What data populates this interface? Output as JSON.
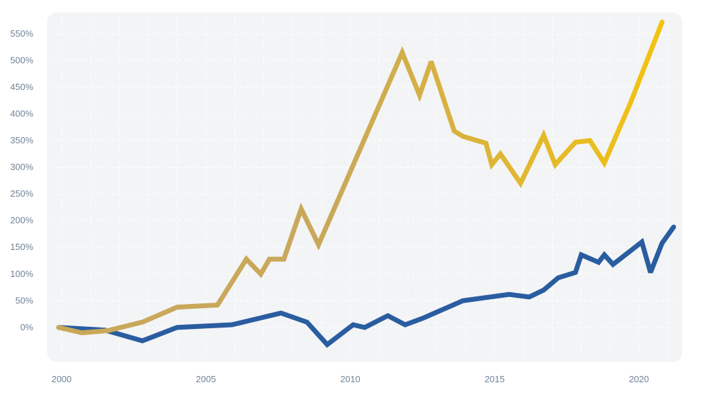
{
  "chart_data": {
    "type": "line",
    "title": "",
    "xlabel": "",
    "ylabel": "",
    "xlim": [
      1999.5,
      2021.5
    ],
    "ylim": [
      -65,
      590
    ],
    "x_ticks": [
      2000,
      2005,
      2010,
      2015,
      2020
    ],
    "x_tick_labels": [
      "2000",
      "2005",
      "2010",
      "2015",
      "2020"
    ],
    "y_ticks": [
      0,
      50,
      100,
      150,
      200,
      250,
      300,
      350,
      400,
      450,
      500,
      550
    ],
    "y_tick_labels": [
      "0%",
      "50%",
      "100%",
      "150%",
      "200%",
      "250%",
      "300%",
      "350%",
      "400%",
      "450%",
      "500%",
      "550%"
    ],
    "grid": true,
    "legend": "none",
    "colors": {
      "plot_background": "#f3f4f6",
      "grid": "#ffffff",
      "tick_text": "#6f8296",
      "gold_start": "#c9a85a",
      "gold_end": "#f2c311",
      "blue": "#2a5da0"
    },
    "series": [
      {
        "color": "gold-gradient",
        "x": [
          1999.9,
          2000.7,
          2001.6,
          2002.8,
          2004.0,
          2005.4,
          2006.4,
          2006.9,
          2007.2,
          2007.7,
          2008.3,
          2008.9,
          2011.8,
          2012.4,
          2012.8,
          2013.6,
          2013.9,
          2014.7,
          2014.9,
          2015.2,
          2015.9,
          2016.7,
          2017.1,
          2017.8,
          2018.3,
          2018.8,
          2019.7,
          2020.8
        ],
        "y": [
          0,
          -10,
          -6,
          10,
          38,
          42,
          128,
          100,
          128,
          128,
          222,
          155,
          515,
          435,
          498,
          368,
          358,
          345,
          305,
          325,
          270,
          360,
          305,
          347,
          350,
          308,
          420,
          572
        ]
      },
      {
        "color": "blue",
        "x": [
          1999.9,
          2001.5,
          2002.8,
          2004.0,
          2005.9,
          2007.6,
          2008.5,
          2009.2,
          2010.1,
          2010.5,
          2011.3,
          2011.9,
          2012.5,
          2013.9,
          2015.5,
          2016.2,
          2016.7,
          2017.2,
          2017.8,
          2018.0,
          2018.6,
          2018.8,
          2019.1,
          2020.1,
          2020.4,
          2020.8,
          2021.2
        ],
        "y": [
          0,
          -5,
          -25,
          0,
          5,
          27,
          10,
          -32,
          5,
          0,
          22,
          5,
          17,
          50,
          62,
          57,
          70,
          93,
          103,
          136,
          122,
          136,
          118,
          160,
          103,
          158,
          188
        ]
      }
    ]
  }
}
